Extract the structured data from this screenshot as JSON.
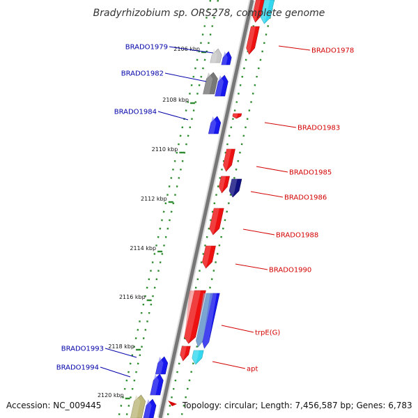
{
  "title": "Bradyrhizobium sp. ORS278, complete genome",
  "accession": "Accession: NC_009445",
  "topology": "Topology: circular; Length: 7,456,587 bp; Genes: 6,783",
  "colors": {
    "forward_label": "#d40000",
    "reverse_label": "#0000aa",
    "red_gene": "#ee1111",
    "blue_gene": "#1818ee",
    "navy_gene": "#101080",
    "gray_gene": "#777777",
    "light_gray_gene": "#c8c8c8",
    "cyan_gene": "#33d8f0",
    "steel_gene": "#5b8fc8",
    "olive_gene": "#bdb77a",
    "backbone": "#777777",
    "dots": "#2e8b2e"
  },
  "ticks": [
    {
      "label": "2106 kbp"
    },
    {
      "label": "2108 kbp"
    },
    {
      "label": "2110 kbp"
    },
    {
      "label": "2112 kbp"
    },
    {
      "label": "2114 kbp"
    },
    {
      "label": "2116 kbp"
    },
    {
      "label": "2118 kbp"
    },
    {
      "label": "2120 kbp"
    }
  ],
  "forward_genes": [
    {
      "label": "BRADO1978"
    },
    {
      "label": "BRADO1983"
    },
    {
      "label": "BRADO1985"
    },
    {
      "label": "BRADO1986"
    },
    {
      "label": "BRADO1988"
    },
    {
      "label": "BRADO1990"
    },
    {
      "label": "trpE(G)"
    },
    {
      "label": "apt"
    }
  ],
  "reverse_genes": [
    {
      "label": "BRADO1979"
    },
    {
      "label": "BRADO1982"
    },
    {
      "label": "BRADO1984"
    },
    {
      "label": "BRADO1993"
    },
    {
      "label": "BRADO1994"
    }
  ]
}
